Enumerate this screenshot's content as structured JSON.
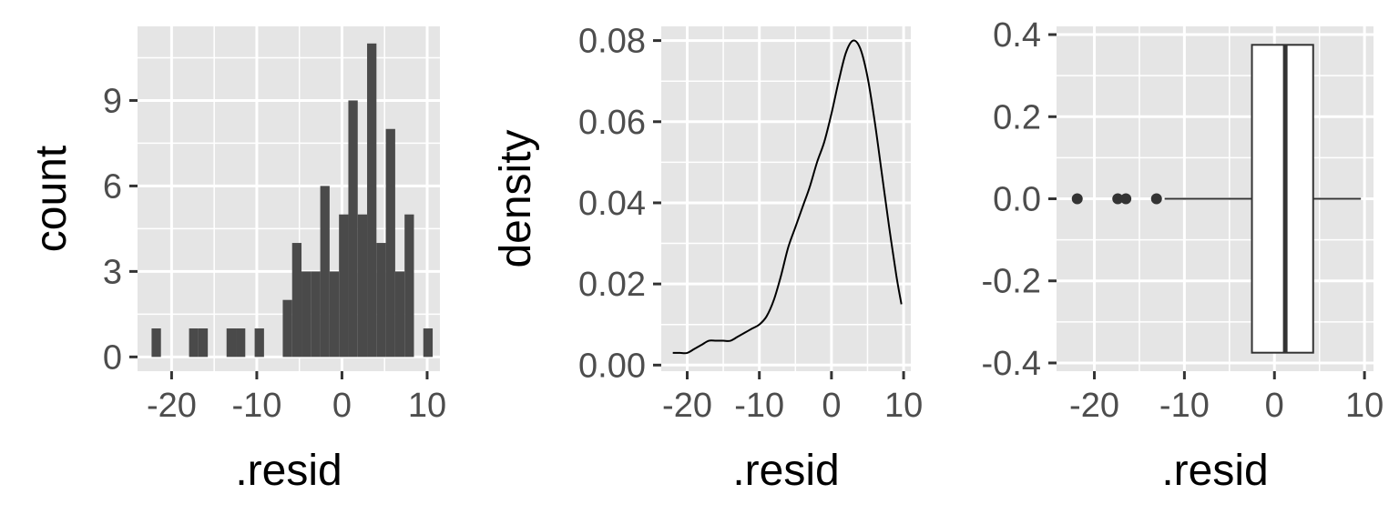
{
  "chart_data": [
    {
      "type": "bar",
      "xlabel": ".resid",
      "ylabel": "count",
      "bin_width": 1.1,
      "bin_centers": [
        -21.8,
        -17.4,
        -16.3,
        -13.0,
        -11.9,
        -9.7,
        -6.4,
        -5.3,
        -4.2,
        -3.1,
        -2.0,
        -0.9,
        0.2,
        1.3,
        2.4,
        3.5,
        4.6,
        5.7,
        6.8,
        7.9,
        10.1
      ],
      "counts": [
        1,
        1,
        1,
        1,
        1,
        1,
        2,
        4,
        3,
        3,
        6,
        3,
        5,
        9,
        5,
        11,
        4,
        8,
        3,
        5,
        1
      ],
      "xlim": [
        -24,
        11.5
      ],
      "ylim": [
        -0.5,
        11.6
      ],
      "xticks": [
        -20,
        -10,
        0,
        10
      ],
      "xtick_labels": [
        "-20",
        "-10",
        "0",
        "10"
      ],
      "yticks": [
        0,
        3,
        6,
        9
      ],
      "ytick_labels": [
        "0",
        "3",
        "6",
        "9"
      ],
      "grid": true,
      "bar_color": "#4a4a4a",
      "panel_color": "#e5e5e5"
    },
    {
      "type": "line",
      "xlabel": ".resid",
      "ylabel": "density",
      "x": [
        -22.0,
        -21.0,
        -20.0,
        -19.0,
        -18.0,
        -17.0,
        -16.0,
        -15.0,
        -14.0,
        -13.0,
        -12.0,
        -11.0,
        -10.0,
        -9.0,
        -8.0,
        -7.0,
        -6.0,
        -5.0,
        -4.0,
        -3.0,
        -2.0,
        -1.0,
        0.0,
        1.0,
        2.0,
        3.0,
        4.0,
        5.0,
        6.0,
        7.0,
        8.0,
        9.0,
        9.7
      ],
      "y": [
        0.003,
        0.003,
        0.003,
        0.004,
        0.005,
        0.006,
        0.006,
        0.006,
        0.006,
        0.007,
        0.008,
        0.009,
        0.01,
        0.012,
        0.016,
        0.022,
        0.029,
        0.034,
        0.039,
        0.044,
        0.05,
        0.055,
        0.062,
        0.07,
        0.077,
        0.08,
        0.078,
        0.071,
        0.06,
        0.047,
        0.034,
        0.022,
        0.015
      ],
      "xlim": [
        -23.6,
        11.0
      ],
      "ylim": [
        -0.0015,
        0.0835
      ],
      "xticks": [
        -20,
        -10,
        0,
        10
      ],
      "xtick_labels": [
        "-20",
        "-10",
        "0",
        "10"
      ],
      "yticks": [
        0,
        0.02,
        0.04,
        0.06,
        0.08
      ],
      "ytick_labels": [
        "0.00",
        "0.02",
        "0.04",
        "0.06",
        "0.08"
      ],
      "grid": true,
      "line_color": "#000000",
      "panel_color": "#e5e5e5"
    },
    {
      "type": "box",
      "xlabel": ".resid",
      "ylabel": "",
      "box": {
        "whisker_low": -12.2,
        "q1": -2.5,
        "median": 1.2,
        "q3": 4.3,
        "whisker_high": 9.6
      },
      "outliers": [
        -21.9,
        -17.4,
        -16.5,
        -13.1
      ],
      "box_half_height": 0.375,
      "xlim": [
        -24.2,
        11.0
      ],
      "ylim": [
        -0.42,
        0.42
      ],
      "xticks": [
        -20,
        -10,
        0,
        10
      ],
      "xtick_labels": [
        "-20",
        "-10",
        "0",
        "10"
      ],
      "yticks": [
        -0.4,
        -0.2,
        0.0,
        0.2,
        0.4
      ],
      "ytick_labels": [
        "-0.4",
        "-0.2",
        "0.0",
        "0.2",
        "0.4"
      ],
      "grid": true,
      "box_fill": "#ffffff",
      "stroke_color": "#333333",
      "panel_color": "#e5e5e5"
    }
  ]
}
